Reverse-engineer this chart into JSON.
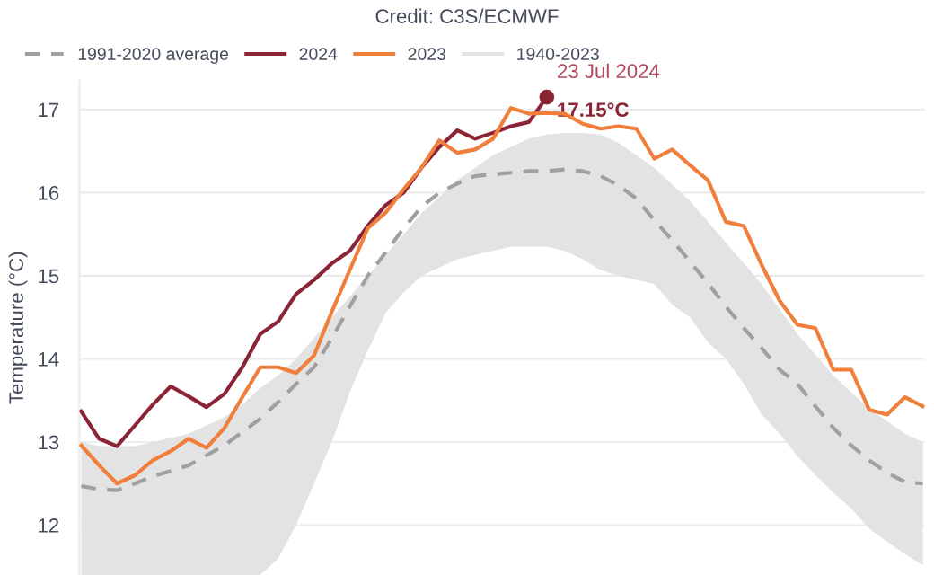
{
  "chart_data": {
    "type": "line",
    "annotations": [
      "Credit: C3S/ECMWF",
      "23 Jul 2024",
      "17.15°C"
    ],
    "ylabel": "Temperature (°C)",
    "categories": [
      null,
      null,
      null,
      null,
      null,
      null,
      null,
      null,
      null,
      null,
      null,
      null,
      null,
      null,
      null,
      null,
      null,
      null,
      null,
      null,
      null,
      null,
      null,
      null,
      null,
      null,
      null,
      null,
      null,
      null,
      null,
      null,
      null,
      null,
      null,
      null,
      null,
      null,
      null,
      null,
      null,
      null,
      null,
      null,
      null,
      null,
      null,
      null
    ],
    "series": [
      {
        "name": "1991-2020 average",
        "color": "#a0a0a0",
        "line_style": "dashed",
        "values": [
          12.47,
          12.43,
          12.42,
          12.5,
          12.59,
          12.65,
          12.72,
          12.84,
          12.96,
          13.12,
          13.28,
          13.48,
          13.7,
          13.9,
          14.25,
          14.63,
          15.0,
          15.28,
          15.57,
          15.83,
          16.0,
          16.11,
          16.2,
          16.22,
          16.24,
          16.26,
          16.26,
          16.28,
          16.26,
          16.2,
          16.09,
          15.93,
          15.67,
          15.43,
          15.17,
          14.91,
          14.63,
          14.37,
          14.13,
          13.87,
          13.7,
          13.43,
          13.17,
          12.96,
          12.78,
          12.63,
          12.52,
          12.5
        ]
      },
      {
        "name": "2024",
        "color": "#8b2535",
        "line_style": "solid",
        "values": [
          13.37,
          13.04,
          12.95,
          13.2,
          13.45,
          13.67,
          13.55,
          13.42,
          13.58,
          13.9,
          14.3,
          14.45,
          14.78,
          14.95,
          15.15,
          15.3,
          15.6,
          15.85,
          16.0,
          16.3,
          16.55,
          16.75,
          16.65,
          16.72,
          16.8,
          16.85,
          17.15,
          null,
          null,
          null,
          null,
          null,
          null,
          null,
          null,
          null,
          null,
          null,
          null,
          null,
          null,
          null,
          null,
          null,
          null,
          null,
          null,
          null
        ]
      },
      {
        "name": "2023",
        "color": "#f07f3c",
        "line_style": "solid",
        "values": [
          12.96,
          12.72,
          12.5,
          12.6,
          12.78,
          12.89,
          13.04,
          12.93,
          13.17,
          13.54,
          13.9,
          13.9,
          13.83,
          14.04,
          14.57,
          15.07,
          15.57,
          15.76,
          16.04,
          16.3,
          16.63,
          16.48,
          16.52,
          16.65,
          17.02,
          16.95,
          16.96,
          16.95,
          16.83,
          16.77,
          16.8,
          16.77,
          16.41,
          16.52,
          16.33,
          16.15,
          15.65,
          15.6,
          15.13,
          14.7,
          14.41,
          14.37,
          13.87,
          13.87,
          13.39,
          13.33,
          13.54,
          13.43
        ]
      },
      {
        "name": "1940-2023",
        "color": "#e3e3e3",
        "type": "area",
        "values": [
          null,
          null,
          null,
          null,
          null,
          null,
          null,
          null,
          null,
          null,
          null,
          null,
          null,
          null,
          null,
          null,
          null,
          null,
          null,
          null,
          null,
          null,
          null,
          null,
          null,
          null,
          null,
          null,
          null,
          null,
          null,
          null,
          null,
          null,
          null,
          null,
          null,
          null,
          null,
          null,
          null,
          null,
          null,
          null,
          null,
          null,
          null,
          null
        ],
        "lower": [
          11.4,
          11.4,
          11.4,
          11.4,
          11.4,
          11.4,
          11.4,
          11.4,
          11.4,
          11.4,
          11.4,
          11.6,
          12.0,
          12.5,
          13.0,
          13.6,
          14.1,
          14.55,
          14.8,
          15.0,
          15.1,
          15.2,
          15.25,
          15.3,
          15.35,
          15.35,
          15.35,
          15.3,
          15.2,
          15.07,
          15.0,
          14.95,
          14.9,
          14.65,
          14.5,
          14.2,
          14.0,
          13.7,
          13.33,
          13.1,
          12.83,
          12.6,
          12.39,
          12.2,
          11.96,
          11.8,
          11.65,
          11.52
        ],
        "upper": [
          13.0,
          12.95,
          12.95,
          12.95,
          13.0,
          13.05,
          13.1,
          13.2,
          13.3,
          13.45,
          13.65,
          13.8,
          14.0,
          14.25,
          14.5,
          14.75,
          15.0,
          15.25,
          15.5,
          15.75,
          15.95,
          16.15,
          16.3,
          16.45,
          16.55,
          16.65,
          16.7,
          16.72,
          16.72,
          16.7,
          16.6,
          16.45,
          16.3,
          16.1,
          15.9,
          15.65,
          15.4,
          15.15,
          14.9,
          14.6,
          14.3,
          14.05,
          13.8,
          13.6,
          13.4,
          13.25,
          13.1,
          13.0
        ]
      }
    ],
    "ylim": [
      11.4,
      17.35
    ],
    "yticks": [
      12,
      13,
      14,
      15,
      16,
      17
    ],
    "grid": "y",
    "legend": "top left"
  }
}
